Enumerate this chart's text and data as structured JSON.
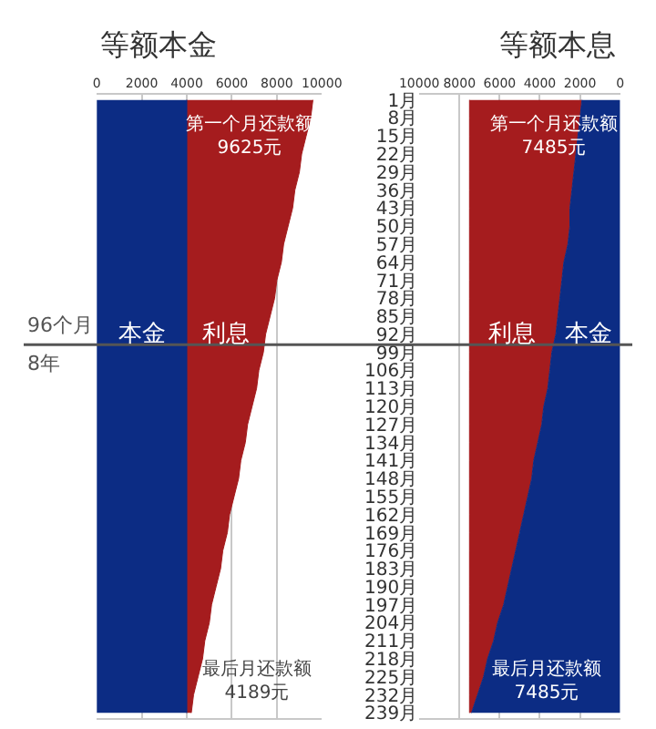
{
  "chart_data": [
    {
      "type": "area",
      "title": "等额本金",
      "orientation": "horizontal",
      "stacked": true,
      "legend": false,
      "grid": "x",
      "tick_labels": "x",
      "x": [
        1,
        8,
        15,
        22,
        29,
        36,
        43,
        50,
        57,
        64,
        71,
        78,
        85,
        92,
        99,
        106,
        113,
        120,
        127,
        134,
        141,
        148,
        155,
        162,
        169,
        176,
        183,
        190,
        197,
        204,
        211,
        218,
        225,
        232,
        239
      ],
      "xlim": [
        0,
        10000
      ],
      "xticks": [
        0,
        2000,
        4000,
        6000,
        8000,
        10000
      ],
      "ylim": [
        241,
        -1
      ],
      "series": [
        {
          "name": "本金",
          "color": "#0c2c84",
          "values": [
            4000,
            4000,
            4000,
            4000,
            4000,
            4000,
            4000,
            4000,
            4000,
            4000,
            4000,
            4000,
            4000,
            4000,
            4000,
            4000,
            4000,
            4000,
            4000,
            4000,
            4000,
            4000,
            4000,
            4000,
            4000,
            4000,
            4000,
            4000,
            4000,
            4000,
            4000,
            4000,
            4000,
            4000,
            4000
          ]
        },
        {
          "name": "利息",
          "color": "#a51c1e",
          "values": [
            5600,
            5500,
            5300,
            5100,
            5000,
            4800,
            4700,
            4500,
            4300,
            4200,
            4000,
            3900,
            3700,
            3500,
            3400,
            3200,
            3100,
            2900,
            2700,
            2600,
            2400,
            2300,
            2100,
            1900,
            1800,
            1600,
            1500,
            1300,
            1100,
            1000,
            800,
            700,
            500,
            300,
            200
          ]
        }
      ],
      "ref_lines": [
        {
          "axis": "y",
          "value": 96,
          "label": "96个月",
          "color": "#555555"
        }
      ],
      "annotations": [
        "第一个月还款额\n9625元",
        "最后月还款额\n4189元",
        "8年"
      ]
    },
    {
      "type": "area",
      "title": "等额本息",
      "orientation": "horizontal",
      "stacked": true,
      "legend": false,
      "grid": "x",
      "x": [
        1,
        8,
        15,
        22,
        29,
        36,
        43,
        50,
        57,
        64,
        71,
        78,
        85,
        92,
        99,
        106,
        113,
        120,
        127,
        134,
        141,
        148,
        155,
        162,
        169,
        176,
        183,
        190,
        197,
        204,
        211,
        218,
        225,
        232,
        239
      ],
      "xlim": [
        10000,
        0
      ],
      "xticks": [
        10000,
        8000,
        6000,
        4000,
        2000,
        0
      ],
      "ylim": [
        241,
        -1
      ],
      "yticks": [
        {
          "value": 1,
          "label": "1月"
        },
        {
          "value": 8,
          "label": "8月"
        },
        {
          "value": 15,
          "label": "15月"
        },
        {
          "value": 22,
          "label": "22月"
        },
        {
          "value": 29,
          "label": "29月"
        },
        {
          "value": 36,
          "label": "36月"
        },
        {
          "value": 43,
          "label": "43月"
        },
        {
          "value": 50,
          "label": "50月"
        },
        {
          "value": 57,
          "label": "57月"
        },
        {
          "value": 64,
          "label": "64月"
        },
        {
          "value": 71,
          "label": "71月"
        },
        {
          "value": 78,
          "label": "78月"
        },
        {
          "value": 85,
          "label": "85月"
        },
        {
          "value": 92,
          "label": "92月"
        },
        {
          "value": 99,
          "label": "99月"
        },
        {
          "value": 106,
          "label": "106月"
        },
        {
          "value": 113,
          "label": "113月"
        },
        {
          "value": 120,
          "label": "120月"
        },
        {
          "value": 127,
          "label": "127月"
        },
        {
          "value": 134,
          "label": "134月"
        },
        {
          "value": 141,
          "label": "141月"
        },
        {
          "value": 148,
          "label": "148月"
        },
        {
          "value": 155,
          "label": "155月"
        },
        {
          "value": 162,
          "label": "162月"
        },
        {
          "value": 169,
          "label": "169月"
        },
        {
          "value": 176,
          "label": "176月"
        },
        {
          "value": 183,
          "label": "183月"
        },
        {
          "value": 190,
          "label": "190月"
        },
        {
          "value": 197,
          "label": "197月"
        },
        {
          "value": 204,
          "label": "204月"
        },
        {
          "value": 211,
          "label": "211月"
        },
        {
          "value": 218,
          "label": "218月"
        },
        {
          "value": 225,
          "label": "225月"
        },
        {
          "value": 232,
          "label": "232月"
        },
        {
          "value": 239,
          "label": "239月"
        }
      ],
      "series": [
        {
          "name": "本金",
          "color": "#0c2c84",
          "values": [
            1900,
            2000,
            2100,
            2200,
            2300,
            2400,
            2500,
            2500,
            2600,
            2800,
            2900,
            3000,
            3100,
            3200,
            3400,
            3500,
            3600,
            3800,
            3900,
            4100,
            4300,
            4400,
            4600,
            4800,
            5000,
            5200,
            5400,
            5600,
            5800,
            6100,
            6300,
            6600,
            6800,
            7100,
            7400
          ]
        },
        {
          "name": "利息",
          "color": "#a51c1e",
          "values": [
            5600,
            5500,
            5400,
            5300,
            5200,
            5100,
            5000,
            5000,
            4900,
            4700,
            4600,
            4500,
            4400,
            4300,
            4100,
            4000,
            3900,
            3700,
            3600,
            3400,
            3200,
            3100,
            2900,
            2700,
            2500,
            2300,
            2100,
            1900,
            1700,
            1400,
            1200,
            900,
            700,
            400,
            100
          ]
        }
      ],
      "annotations": [
        "第一个月还款额\n7485元",
        "最后月还款额\n7485元"
      ]
    }
  ]
}
